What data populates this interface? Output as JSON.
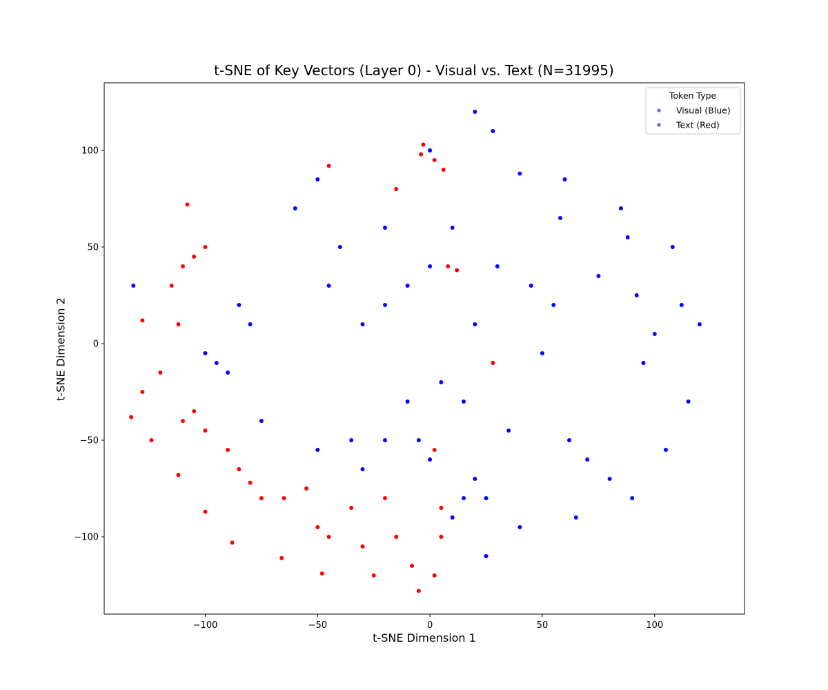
{
  "chart_data": {
    "type": "scatter",
    "title": "t-SNE of Key Vectors (Layer 0) - Visual vs. Text (N=31995)",
    "xlabel": "t-SNE Dimension 1",
    "ylabel": "t-SNE Dimension 2",
    "xlim": [
      -145,
      140
    ],
    "ylim": [
      -140,
      135
    ],
    "x_ticks": [
      -100,
      -50,
      0,
      50,
      100
    ],
    "y_ticks": [
      -100,
      -50,
      0,
      50,
      100
    ],
    "x_tick_labels": [
      "−100",
      "−50",
      "0",
      "50",
      "100"
    ],
    "y_tick_labels": [
      "−100",
      "−50",
      "0",
      "50",
      "100"
    ],
    "grid": false,
    "legend": {
      "title": "Token Type",
      "placement": "top-right",
      "entries": [
        "Visual (Blue)",
        "Text (Red)"
      ]
    },
    "series": [
      {
        "name": "Visual (Blue)",
        "color": "#0000ff",
        "sample_points": [
          [
            -100,
            -5
          ],
          [
            -95,
            -10
          ],
          [
            -90,
            -15
          ],
          [
            -85,
            20
          ],
          [
            -80,
            10
          ],
          [
            -75,
            -40
          ],
          [
            -60,
            70
          ],
          [
            -50,
            85
          ],
          [
            -45,
            30
          ],
          [
            -40,
            50
          ],
          [
            -35,
            -50
          ],
          [
            -30,
            10
          ],
          [
            -20,
            60
          ],
          [
            -10,
            30
          ],
          [
            0,
            40
          ],
          [
            5,
            -20
          ],
          [
            10,
            60
          ],
          [
            15,
            -30
          ],
          [
            20,
            10
          ],
          [
            25,
            -80
          ],
          [
            30,
            40
          ],
          [
            35,
            -45
          ],
          [
            40,
            88
          ],
          [
            45,
            30
          ],
          [
            0,
            -60
          ],
          [
            5,
            -85
          ],
          [
            10,
            -90
          ],
          [
            15,
            -80
          ],
          [
            20,
            -70
          ],
          [
            -5,
            -50
          ],
          [
            60,
            85
          ],
          [
            58,
            65
          ],
          [
            55,
            20
          ],
          [
            50,
            -5
          ],
          [
            62,
            -50
          ],
          [
            70,
            -60
          ],
          [
            75,
            35
          ],
          [
            85,
            70
          ],
          [
            88,
            55
          ],
          [
            92,
            25
          ],
          [
            95,
            -10
          ],
          [
            100,
            5
          ],
          [
            108,
            50
          ],
          [
            112,
            20
          ],
          [
            115,
            -30
          ],
          [
            120,
            10
          ],
          [
            105,
            -55
          ],
          [
            90,
            -80
          ],
          [
            80,
            -70
          ],
          [
            65,
            -90
          ],
          [
            40,
            -95
          ],
          [
            25,
            -110
          ],
          [
            20,
            120
          ],
          [
            28,
            110
          ],
          [
            -20,
            20
          ],
          [
            -10,
            -30
          ],
          [
            -50,
            -55
          ],
          [
            -30,
            -65
          ],
          [
            -20,
            -50
          ],
          [
            0,
            100
          ],
          [
            -132,
            30
          ]
        ]
      },
      {
        "name": "Text (Red)",
        "color": "#ff0000",
        "sample_points": [
          [
            -105,
            45
          ],
          [
            -110,
            40
          ],
          [
            -100,
            50
          ],
          [
            -108,
            72
          ],
          [
            -115,
            30
          ],
          [
            -112,
            10
          ],
          [
            -120,
            -15
          ],
          [
            -128,
            -25
          ],
          [
            -133,
            -38
          ],
          [
            -128,
            12
          ],
          [
            -105,
            -35
          ],
          [
            -100,
            -45
          ],
          [
            -110,
            -40
          ],
          [
            -90,
            -55
          ],
          [
            -85,
            -65
          ],
          [
            -80,
            -72
          ],
          [
            -75,
            -80
          ],
          [
            -65,
            -80
          ],
          [
            -55,
            -75
          ],
          [
            -50,
            -95
          ],
          [
            -45,
            -100
          ],
          [
            -35,
            -85
          ],
          [
            -30,
            -105
          ],
          [
            -25,
            -120
          ],
          [
            -20,
            -80
          ],
          [
            -15,
            -100
          ],
          [
            -8,
            -115
          ],
          [
            -5,
            -128
          ],
          [
            2,
            -120
          ],
          [
            5,
            -100
          ],
          [
            -88,
            -103
          ],
          [
            -100,
            -87
          ],
          [
            -112,
            -68
          ],
          [
            -124,
            -50
          ],
          [
            -66,
            -111
          ],
          [
            -48,
            -119
          ],
          [
            -4,
            98
          ],
          [
            2,
            95
          ],
          [
            6,
            90
          ],
          [
            -3,
            103
          ],
          [
            28,
            -10
          ],
          [
            2,
            -55
          ],
          [
            5,
            -85
          ],
          [
            8,
            40
          ],
          [
            12,
            38
          ],
          [
            -15,
            80
          ],
          [
            -45,
            92
          ]
        ]
      }
    ]
  }
}
